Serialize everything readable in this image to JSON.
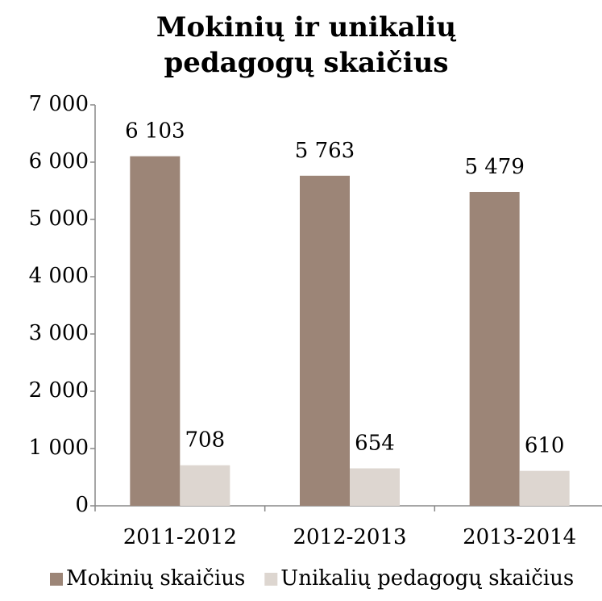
{
  "chart_data": {
    "type": "bar",
    "title": "Mokinių ir unikalių pedagogų skaičius",
    "categories": [
      "2011-2012",
      "2012-2013",
      "2013-2014"
    ],
    "series": [
      {
        "name": "Mokinių skaičius",
        "color": "#9c8577",
        "values": [
          6103,
          5763,
          5479
        ],
        "value_labels": [
          "6 103",
          "5 763",
          "5 479"
        ]
      },
      {
        "name": "Unikalių pedagogų skaičius",
        "color": "#ddd6d0",
        "values": [
          708,
          654,
          610
        ]
      }
    ],
    "ylim": [
      0,
      7000
    ],
    "yticks": [
      0,
      {
        "value": 1000,
        "label": "1 000"
      },
      {
        "value": 2000,
        "label": "2 000"
      },
      {
        "value": 3000,
        "label": "3 000"
      },
      {
        "value": 4000,
        "label": "4 000"
      },
      {
        "value": 5000,
        "label": "5 000"
      },
      {
        "value": 6000,
        "label": "6 000"
      },
      {
        "value": 7000,
        "label": "7 000"
      }
    ],
    "grid": false,
    "legend": "bottom"
  }
}
